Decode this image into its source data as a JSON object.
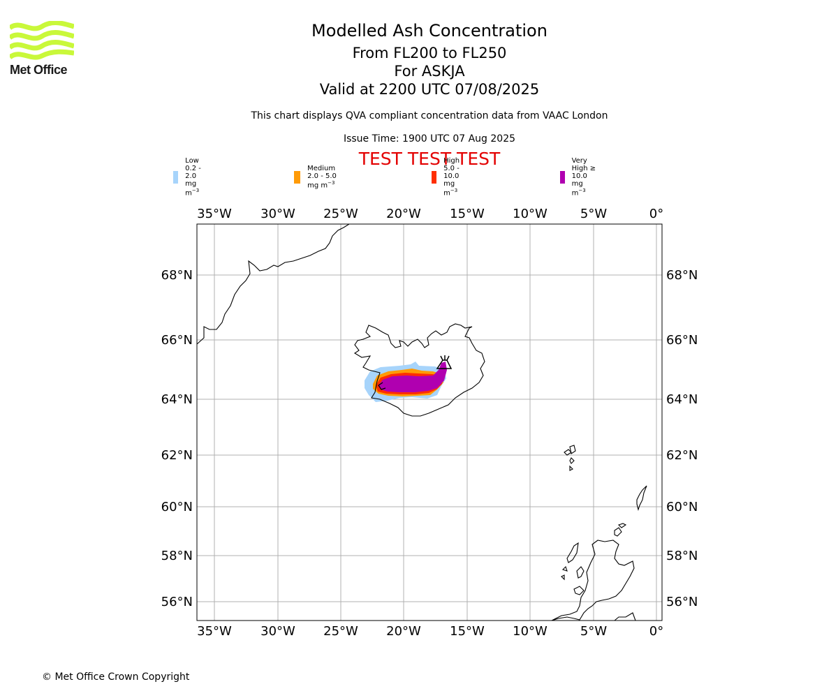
{
  "brand": {
    "name": "Met Office"
  },
  "header": {
    "title": "Modelled Ash Concentration",
    "levels": "From FL200 to FL250",
    "volcano": "For ASKJA",
    "valid": "Valid at 2200 UTC 07/08/2025",
    "subtitle": "This chart displays QVA compliant concentration data from VAAC London",
    "issue": "Issue Time: 1900 UTC 07 Aug 2025",
    "test_banner": "TEST TEST TEST"
  },
  "legend": [
    {
      "label": "Low 0.2 - 2.0 mg m",
      "color": "#a7d4fb"
    },
    {
      "label": "Medium 2.0 - 5.0 mg m",
      "color": "#ff9b07"
    },
    {
      "label": "High 5.0 - 10.0 mg m",
      "color": "#ff2e00"
    },
    {
      "label": "Very High  ≥  10.0 mg m",
      "color": "#b000b0"
    }
  ],
  "legend_unit_exponent": "−3",
  "map": {
    "lon_labels": [
      "35°W",
      "30°W",
      "25°W",
      "20°W",
      "15°W",
      "10°W",
      "5°W",
      "0°"
    ],
    "lat_labels": [
      "68°N",
      "66°N",
      "64°N",
      "62°N",
      "60°N",
      "58°N",
      "56°N"
    ],
    "volcano_symbol": "volcano-icon",
    "colors": {
      "coast": "#000000",
      "grid": "#b0b0b0"
    }
  },
  "footer": {
    "copyright": "© Met Office Crown Copyright"
  }
}
